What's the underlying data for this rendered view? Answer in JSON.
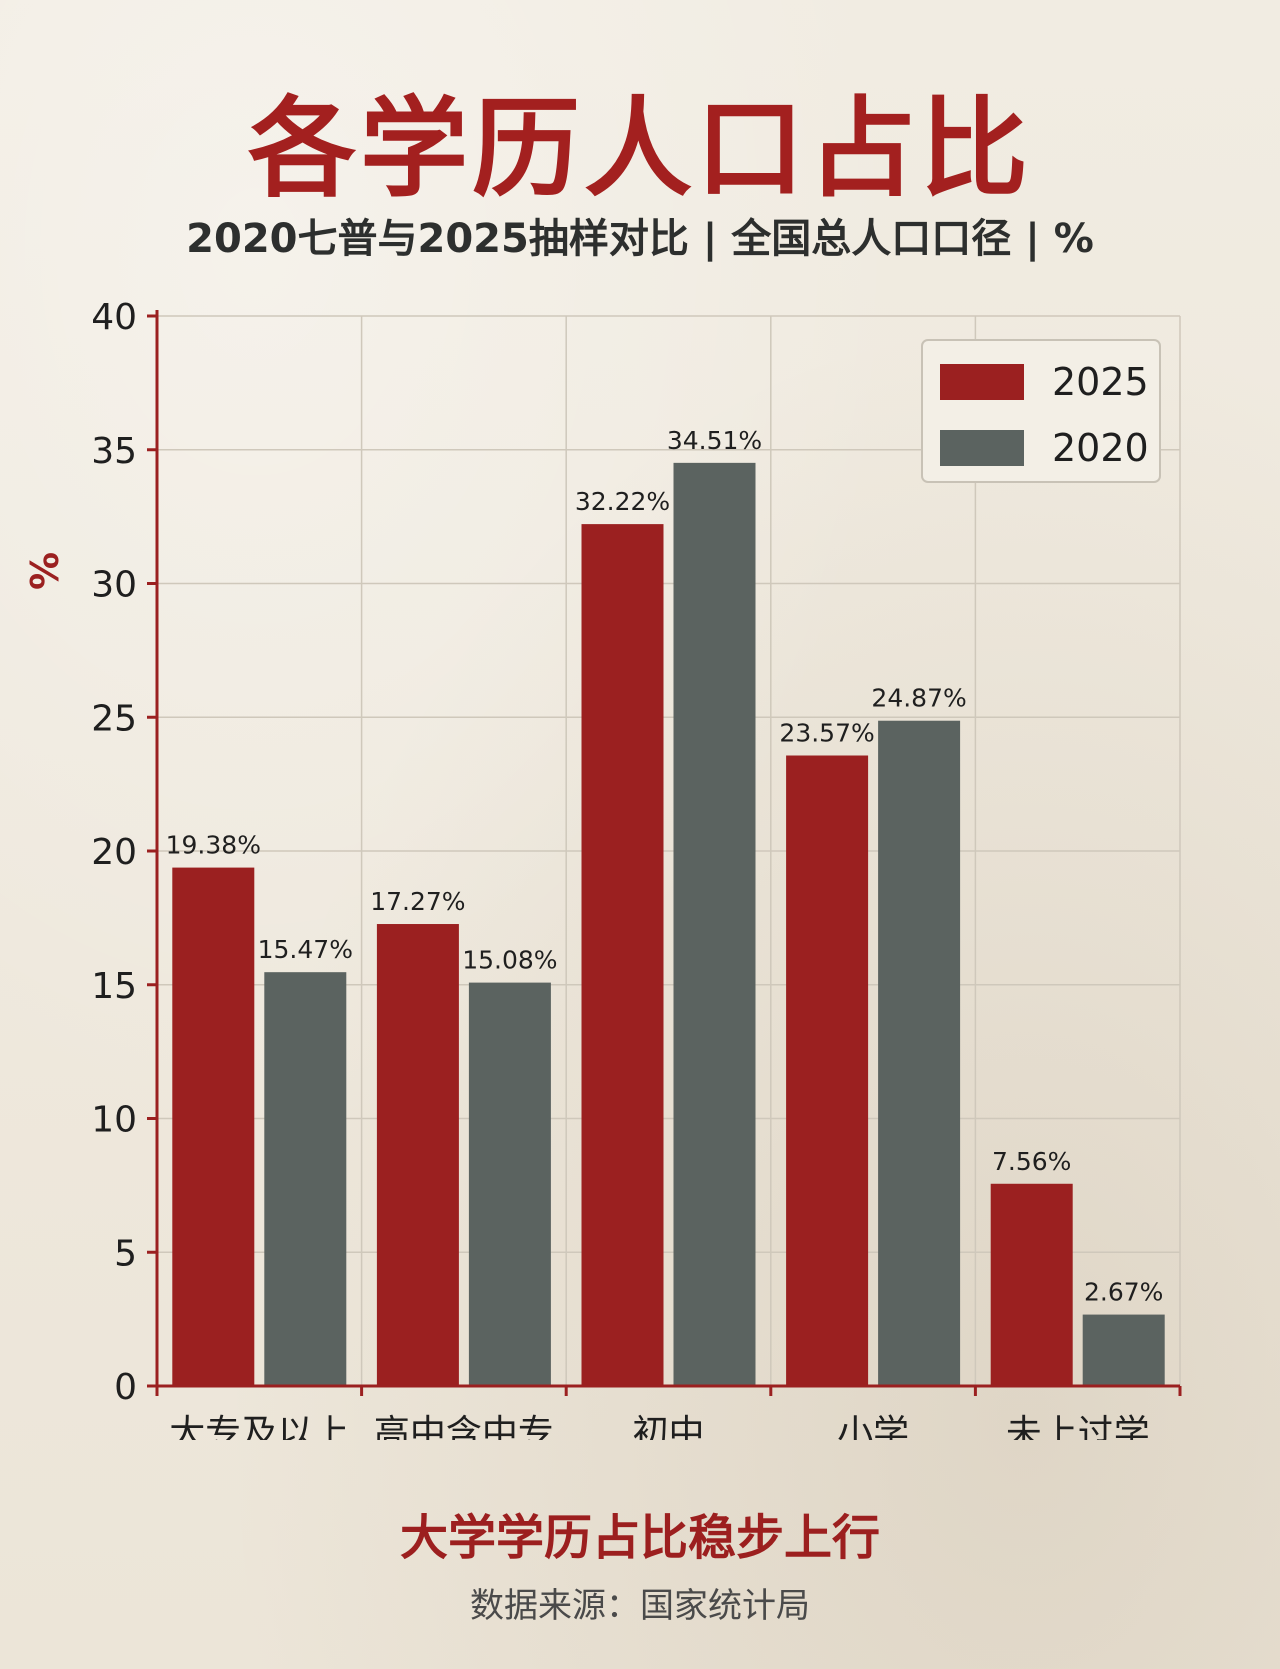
{
  "title": "各学历人口占比",
  "subtitle": "2020七普与2025抽样对比 | 全国总人口口径 | %",
  "headline": "大学学历占比稳步上行",
  "source": "数据来源：国家统计局",
  "colors": {
    "series_2025": "#9b2020",
    "series_2020": "#5b6360",
    "axis": "#9b2020",
    "grid": "#cfc8bb"
  },
  "chart_data": {
    "type": "bar",
    "categories": [
      "大专及以上",
      "高中含中专",
      "初中",
      "小学",
      "未上过学"
    ],
    "series": [
      {
        "name": "2025",
        "values": [
          19.38,
          17.27,
          32.22,
          23.57,
          7.56
        ],
        "labels": [
          "19.38%",
          "17.27%",
          "32.22%",
          "23.57%",
          "7.56%"
        ],
        "color": "#9b2020"
      },
      {
        "name": "2020",
        "values": [
          15.47,
          15.08,
          34.51,
          24.87,
          2.67
        ],
        "labels": [
          "15.47%",
          "15.08%",
          "34.51%",
          "24.87%",
          "2.67%"
        ],
        "color": "#5b6360"
      }
    ],
    "ylabel": "%",
    "ylim": [
      0,
      40
    ],
    "yticks": [
      0,
      5,
      10,
      15,
      20,
      25,
      30,
      35,
      40
    ],
    "grid": true,
    "legend": "top-right"
  }
}
